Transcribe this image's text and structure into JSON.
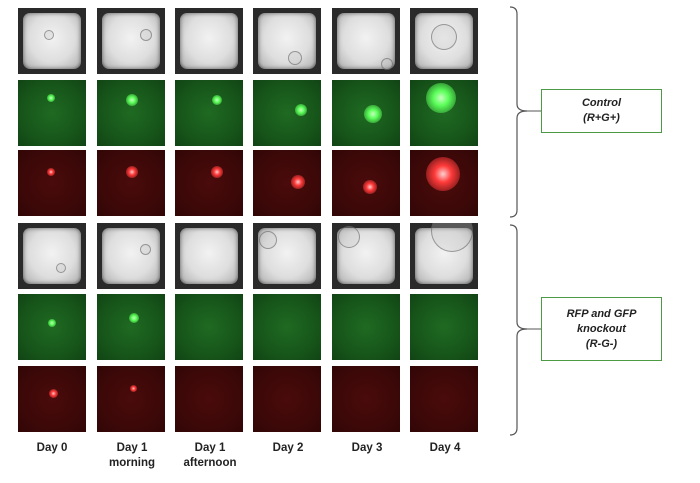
{
  "groups": [
    {
      "label_lines": [
        "Control",
        "(R+G+)"
      ]
    },
    {
      "label_lines": [
        "RFP and GFP",
        "knockout",
        "(R-G-)"
      ]
    }
  ],
  "days": [
    {
      "lines": [
        "Day 0"
      ]
    },
    {
      "lines": [
        "Day 1",
        "morning"
      ]
    },
    {
      "lines": [
        "Day 1",
        "afternoon"
      ]
    },
    {
      "lines": [
        "Day 2"
      ]
    },
    {
      "lines": [
        "Day 3"
      ]
    },
    {
      "lines": [
        "Day 4"
      ]
    }
  ],
  "colors": {
    "label_border": "#4c9a43",
    "gfp_signal": "#5cff5a",
    "rfp_signal": "#ff3a3a"
  }
}
